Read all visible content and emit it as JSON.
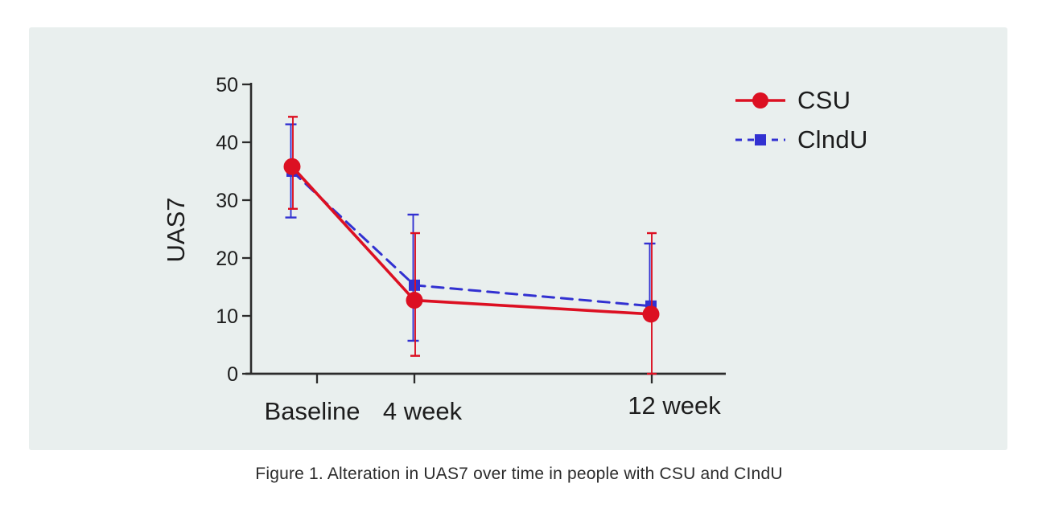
{
  "caption": "Figure 1. Alteration in UAS7 over time in people with CSU and CIndU",
  "colors": {
    "csu_red": "#dc1022",
    "clndu_blue": "#3231d1",
    "panel_bg": "#e9efee",
    "axis": "#2b2b2b",
    "text": "#1d1d1d"
  },
  "chart_data": {
    "type": "line",
    "title": "",
    "xlabel": "",
    "ylabel": "UAS7",
    "categories": [
      "Baseline",
      "4 week",
      "12 week"
    ],
    "ylim": [
      0,
      50
    ],
    "yticks": [
      0,
      10,
      20,
      30,
      40,
      50
    ],
    "grid": false,
    "legend_position": "top-right",
    "series": [
      {
        "name": "CSU",
        "color": "#dc1022",
        "marker": "circle",
        "line_style": "solid",
        "values": [
          35.8,
          12.7,
          10.3
        ],
        "error_low": [
          28.5,
          3.1,
          0
        ],
        "error_high": [
          44.4,
          24.3,
          24.3
        ]
      },
      {
        "name": "ClndU",
        "color": "#3231d1",
        "marker": "square",
        "line_style": "dashed",
        "values": [
          35.0,
          15.3,
          11.7
        ],
        "error_low": [
          27.0,
          5.7,
          null
        ],
        "error_high": [
          43.1,
          27.5,
          22.5
        ]
      }
    ]
  }
}
